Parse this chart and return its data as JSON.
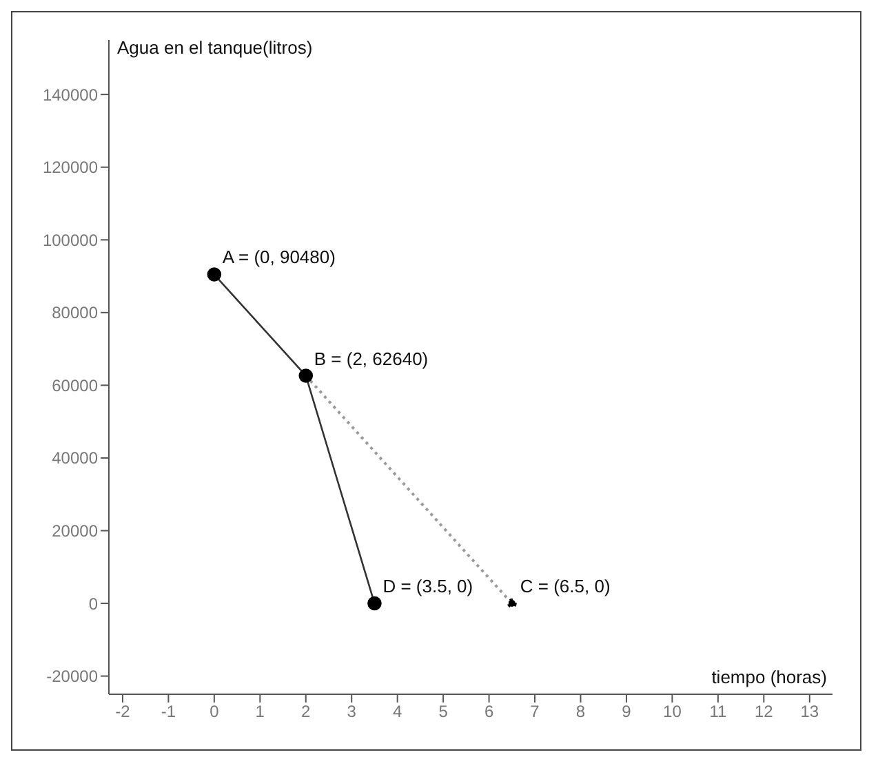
{
  "chart_data": {
    "type": "line",
    "xlabel": "tiempo (horas)",
    "ylabel": "Agua en el tanque(litros)",
    "series": [
      {
        "x": [
          0,
          2,
          3.5
        ],
        "values": [
          90480,
          62640,
          0
        ],
        "color": "#333333",
        "line_style": "solid",
        "marker": "circle"
      },
      {
        "x": [
          2,
          6.5
        ],
        "values": [
          62640,
          0
        ],
        "color": "#9a9a9a",
        "line_style": "dotted",
        "marker": "circle"
      }
    ],
    "xlim": [
      -2.3,
      13.5
    ],
    "ylim": [
      -25000,
      155000
    ],
    "xticks": [
      -2,
      -1,
      0,
      1,
      2,
      3,
      4,
      5,
      6,
      7,
      8,
      9,
      10,
      11,
      12,
      13
    ],
    "yticks": [
      -20000,
      0,
      20000,
      40000,
      60000,
      80000,
      100000,
      120000,
      140000
    ],
    "grid": false,
    "annotations": [
      {
        "text": "A = (0, 90480)",
        "x": 0,
        "y": 90480
      },
      {
        "text": "B = (2, 62640)",
        "x": 2,
        "y": 62640
      },
      {
        "text": "D = (3.5, 0)",
        "x": 3.5,
        "y": 0
      },
      {
        "text": "C = (6.5, 0)",
        "x": 6.5,
        "y": 0
      }
    ]
  }
}
